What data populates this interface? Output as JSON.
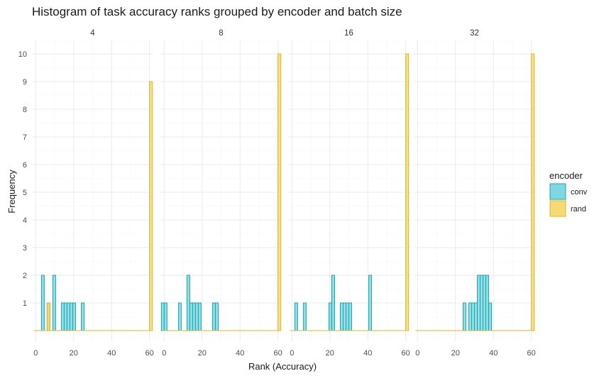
{
  "chart_data": {
    "type": "bar",
    "title": "Histogram of task accuracy ranks grouped by encoder and batch size",
    "xlabel": "Rank (Accuracy)",
    "ylabel": "Frequency",
    "xlim": [
      -2,
      62
    ],
    "ylim": [
      0,
      10
    ],
    "x_ticks": [
      "0",
      "20",
      "40",
      "60"
    ],
    "x_tick_values": [
      0,
      20,
      40,
      60
    ],
    "y_ticks": [
      "1",
      "2",
      "3",
      "4",
      "5",
      "6",
      "7",
      "8",
      "9",
      "10"
    ],
    "y_tick_values": [
      1,
      2,
      3,
      4,
      5,
      6,
      7,
      8,
      9,
      10
    ],
    "grid": true,
    "bin_width": 1.5,
    "legend": {
      "title": "encoder",
      "placement": "right",
      "entries": [
        {
          "label": "conv",
          "fill": "#7fd8e0",
          "stroke": "#1ba5b3"
        },
        {
          "label": "rand",
          "fill": "#f5da78",
          "stroke": "#e0b520"
        }
      ]
    },
    "panels": [
      {
        "label": "4",
        "series": [
          {
            "name": "conv",
            "bins": [
              [
                3,
                2
              ],
              [
                6,
                1
              ],
              [
                9,
                2
              ],
              [
                13.5,
                1
              ],
              [
                15,
                1
              ],
              [
                16.5,
                1
              ],
              [
                18,
                1
              ],
              [
                19.5,
                1
              ],
              [
                24,
                1
              ]
            ]
          },
          {
            "name": "rand",
            "bins": [
              [
                6,
                1
              ],
              [
                60,
                9
              ]
            ]
          }
        ]
      },
      {
        "label": "8",
        "series": [
          {
            "name": "conv",
            "bins": [
              [
                -1.5,
                1
              ],
              [
                0,
                1
              ],
              [
                7.5,
                1
              ],
              [
                12,
                2
              ],
              [
                13.5,
                1
              ],
              [
                15,
                1
              ],
              [
                16.5,
                1
              ],
              [
                18,
                1
              ],
              [
                25.5,
                1
              ],
              [
                27,
                1
              ]
            ]
          },
          {
            "name": "rand",
            "bins": [
              [
                60,
                10
              ]
            ]
          }
        ]
      },
      {
        "label": "16",
        "series": [
          {
            "name": "conv",
            "bins": [
              [
                1.5,
                1
              ],
              [
                6,
                1
              ],
              [
                19.5,
                1
              ],
              [
                21,
                2
              ],
              [
                25.5,
                1
              ],
              [
                27,
                1
              ],
              [
                28.5,
                1
              ],
              [
                30,
                1
              ],
              [
                40.5,
                2
              ]
            ]
          },
          {
            "name": "rand",
            "bins": [
              [
                60,
                10
              ]
            ]
          }
        ]
      },
      {
        "label": "32",
        "series": [
          {
            "name": "conv",
            "bins": [
              [
                24,
                1
              ],
              [
                27,
                1
              ],
              [
                28.5,
                1
              ],
              [
                30,
                1
              ],
              [
                31.5,
                2
              ],
              [
                33,
                2
              ],
              [
                34.5,
                2
              ],
              [
                36,
                2
              ],
              [
                37.5,
                1
              ]
            ]
          },
          {
            "name": "rand",
            "bins": [
              [
                60,
                10
              ]
            ]
          }
        ]
      }
    ]
  }
}
